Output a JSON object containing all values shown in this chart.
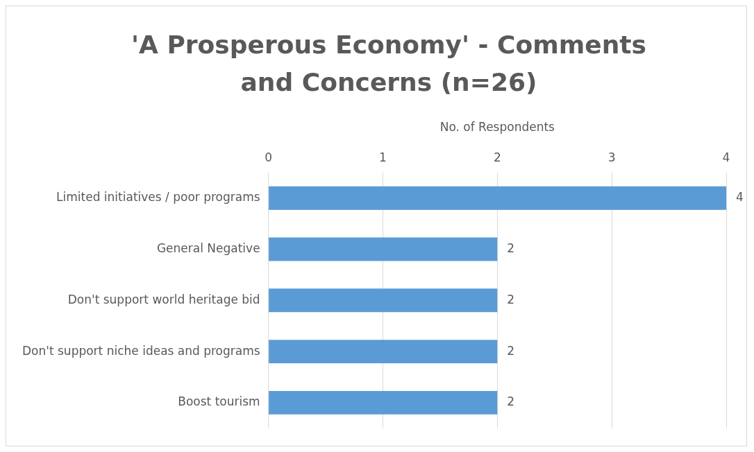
{
  "chart_data": {
    "type": "bar",
    "orientation": "horizontal",
    "title": "'A Prosperous Economy' - Comments and Concerns (n=26)",
    "xlabel": "No. of Respondents",
    "categories": [
      "Limited initiatives / poor programs",
      "General Negative",
      "Don't support world heritage bid",
      "Don't support niche ideas and programs",
      "Boost tourism"
    ],
    "values": [
      4,
      2,
      2,
      2,
      2
    ],
    "color": "#5b9bd5",
    "xlim": [
      0,
      4
    ],
    "xticks": [
      0,
      1,
      2,
      3,
      4
    ],
    "grid": "x",
    "data_labels": true
  }
}
